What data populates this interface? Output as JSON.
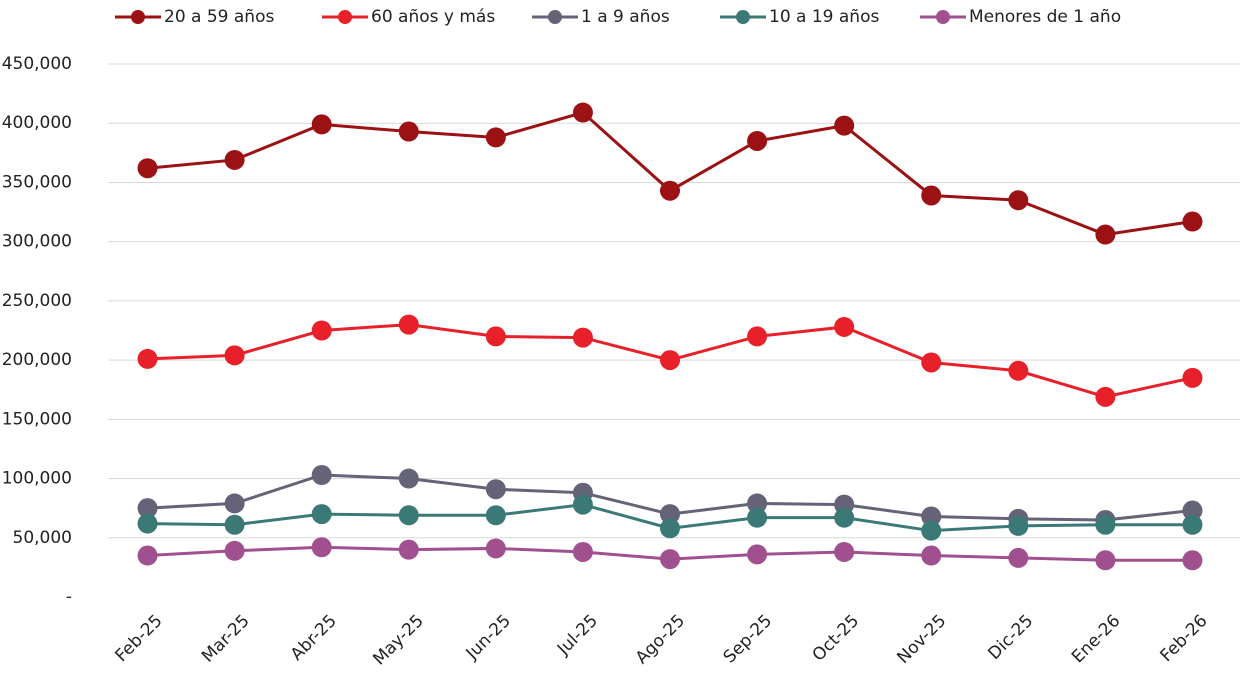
{
  "chart_data": {
    "type": "line",
    "categories": [
      "Feb-25",
      "Mar-25",
      "Abr-25",
      "May-25",
      "Jun-25",
      "Jul-25",
      "Ago-25",
      "Sep-25",
      "Oct-25",
      "Nov-25",
      "Dic-25",
      "Ene-26",
      "Feb-26"
    ],
    "series": [
      {
        "name": "20 a 59 años",
        "color": "#9b1114",
        "values": [
          362000,
          369000,
          399000,
          393000,
          388000,
          409000,
          343000,
          385000,
          398000,
          339000,
          335000,
          306000,
          317000
        ]
      },
      {
        "name": "60 años y más",
        "color": "#e8202a",
        "values": [
          201000,
          204000,
          225000,
          230000,
          220000,
          219000,
          200000,
          220000,
          228000,
          198000,
          191000,
          169000,
          185000
        ]
      },
      {
        "name": "1 a 9 años",
        "color": "#646378",
        "values": [
          75000,
          79000,
          103000,
          100000,
          91000,
          88000,
          70000,
          79000,
          78000,
          68000,
          66000,
          65000,
          73000
        ]
      },
      {
        "name": "10 a 19 años",
        "color": "#3b7977",
        "values": [
          62000,
          61000,
          70000,
          69000,
          69000,
          78000,
          58000,
          67000,
          67000,
          56000,
          60000,
          61000,
          61000
        ]
      },
      {
        "name": "Menores de 1 año",
        "color": "#a04f8f",
        "values": [
          35000,
          39000,
          42000,
          40000,
          41000,
          38000,
          32000,
          36000,
          38000,
          35000,
          33000,
          31000,
          31000
        ]
      }
    ],
    "ylim": [
      0,
      450000
    ],
    "yticks": [
      {
        "value": 0,
        "label": "-"
      },
      {
        "value": 50000,
        "label": "50,000"
      },
      {
        "value": 100000,
        "label": "100,000"
      },
      {
        "value": 150000,
        "label": "150,000"
      },
      {
        "value": 200000,
        "label": "200,000"
      },
      {
        "value": 250000,
        "label": "250,000"
      },
      {
        "value": 300000,
        "label": "300,000"
      },
      {
        "value": 350000,
        "label": "350,000"
      },
      {
        "value": 400000,
        "label": "400,000"
      },
      {
        "value": 450000,
        "label": "450,000"
      }
    ],
    "grid": true,
    "legend": "top"
  }
}
